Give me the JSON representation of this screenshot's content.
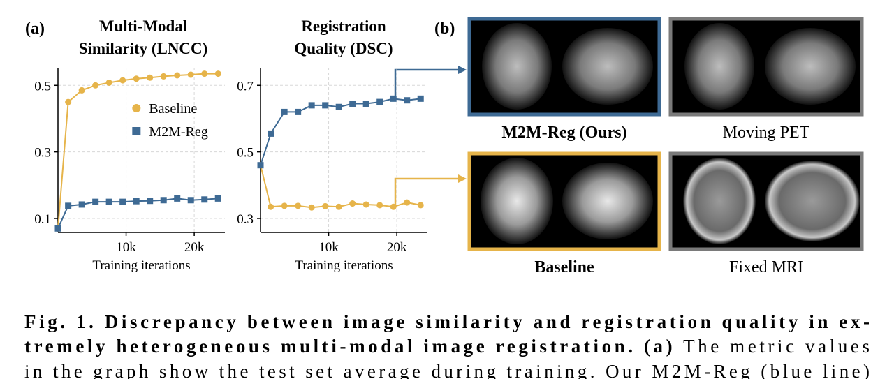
{
  "panel_labels": [
    "(a)",
    "(b)"
  ],
  "chart_data": [
    {
      "type": "line",
      "title": [
        "Multi-Modal",
        "Similarity (LNCC)"
      ],
      "xlabel": "Training iterations",
      "x": [
        0,
        1500,
        3500,
        5500,
        7500,
        9500,
        11500,
        13500,
        15500,
        17500,
        19500,
        21500,
        23500
      ],
      "series": [
        {
          "name": "Baseline",
          "color": "#e6b44a",
          "marker": "circle",
          "values": [
            0.07,
            0.45,
            0.485,
            0.5,
            0.508,
            0.515,
            0.52,
            0.523,
            0.527,
            0.53,
            0.532,
            0.535,
            0.535
          ]
        },
        {
          "name": "M2M-Reg",
          "color": "#3e6a94",
          "marker": "square",
          "values": [
            0.07,
            0.138,
            0.142,
            0.15,
            0.15,
            0.15,
            0.152,
            0.153,
            0.155,
            0.16,
            0.155,
            0.157,
            0.16
          ]
        }
      ],
      "xlim": [
        0,
        24500
      ],
      "ylim": [
        0.058,
        0.553
      ],
      "xticks": [
        {
          "value": 10000,
          "label": "10k"
        },
        {
          "value": 20000,
          "label": "20k"
        }
      ],
      "yticks": [
        0.1,
        0.3,
        0.5
      ],
      "grid": true,
      "legend": "center right"
    },
    {
      "type": "line",
      "title": [
        "Registration",
        "Quality (DSC)"
      ],
      "xlabel": "Training iterations",
      "x": [
        0,
        1500,
        3500,
        5500,
        7500,
        9500,
        11500,
        13500,
        15500,
        17500,
        19500,
        21500,
        23500
      ],
      "series": [
        {
          "name": "Baseline",
          "color": "#e6b44a",
          "marker": "circle",
          "values": [
            0.46,
            0.335,
            0.338,
            0.338,
            0.333,
            0.337,
            0.335,
            0.345,
            0.342,
            0.34,
            0.335,
            0.348,
            0.34
          ]
        },
        {
          "name": "M2M-Reg",
          "color": "#3e6a94",
          "marker": "square",
          "values": [
            0.46,
            0.555,
            0.62,
            0.62,
            0.64,
            0.64,
            0.635,
            0.645,
            0.645,
            0.65,
            0.66,
            0.655,
            0.66
          ]
        }
      ],
      "xlim": [
        0,
        24500
      ],
      "ylim": [
        0.258,
        0.753
      ],
      "xticks": [
        {
          "value": 10000,
          "label": "10k"
        },
        {
          "value": 20000,
          "label": "20k"
        }
      ],
      "yticks": [
        0.3,
        0.5,
        0.7
      ],
      "grid": true
    }
  ],
  "images": [
    {
      "label": "M2M-Reg (Ours)"
    },
    {
      "label": "Moving PET"
    },
    {
      "label": "Baseline"
    },
    {
      "label": "Fixed MRI"
    }
  ],
  "caption": {
    "line1": "Fig. 1. Discrepancy between image similarity and registration quality in ex-",
    "line2_bold": "tremely heterogeneous multi-modal image registration.",
    "line2_label": "(a)",
    "line2_rest": "The metric values",
    "line3": "in the graph show the test set average during training. Our M2M-Reg (blue line)"
  }
}
